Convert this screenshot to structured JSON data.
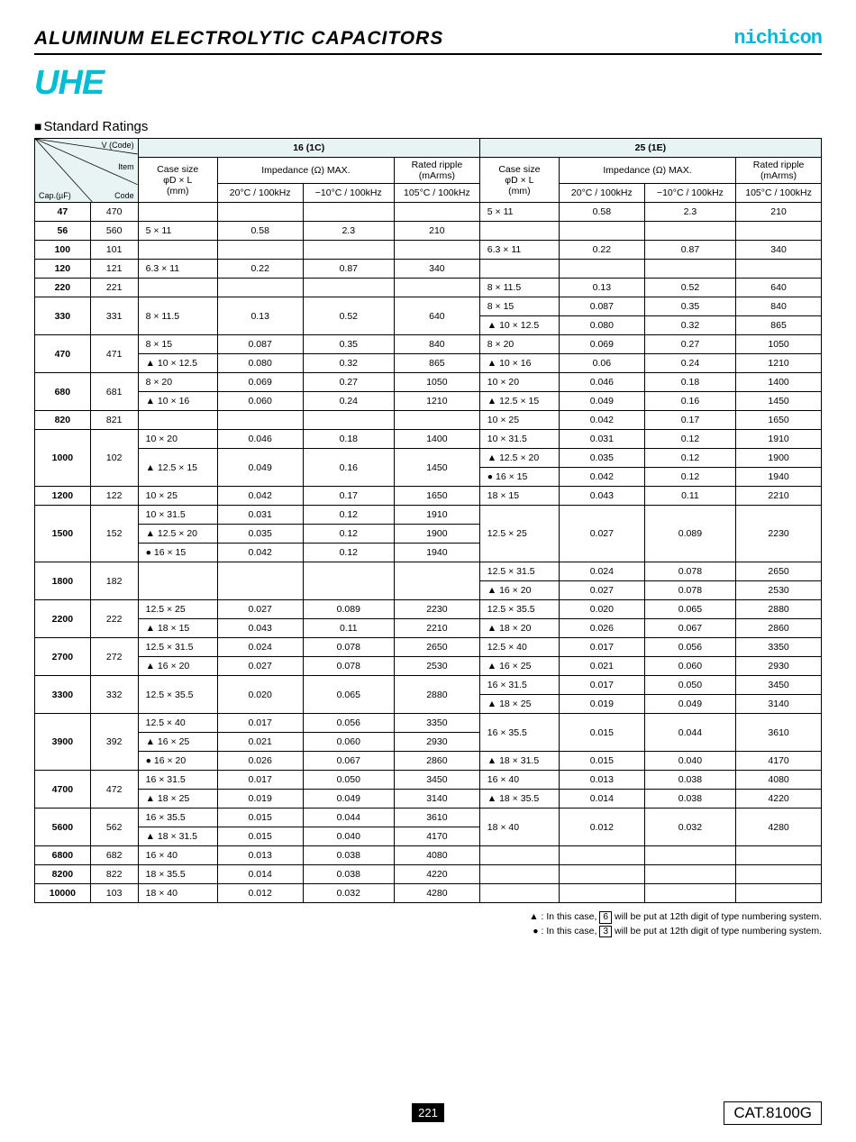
{
  "header": {
    "title": "ALUMINUM  ELECTROLYTIC  CAPACITORS",
    "brand": "nichicon",
    "series": "UHE"
  },
  "section_title": "Standard Ratings",
  "corner": {
    "vcode": "V (Code)",
    "item": "Item",
    "cap": "Cap.(µF)",
    "code": "Code"
  },
  "vheads": [
    "16 (1C)",
    "25 (1E)"
  ],
  "colheads": {
    "case": "Case size\nφD × L\n(mm)",
    "imp": "Impedance (Ω) MAX.",
    "imp20": "20°C / 100kHz",
    "impm10": "−10°C / 100kHz",
    "ripple": "Rated ripple\n(mArms)",
    "ripple105": "105°C / 100kHz"
  },
  "tri": "▲",
  "dot": "●",
  "rows": [
    {
      "cap": "47",
      "code": "470",
      "l": [
        [
          "",
          "",
          "",
          ""
        ]
      ],
      "r": [
        [
          "5 × 11",
          "0.58",
          "2.3",
          "210"
        ]
      ]
    },
    {
      "cap": "56",
      "code": "560",
      "l": [
        [
          "5 × 11",
          "0.58",
          "2.3",
          "210"
        ]
      ],
      "r": [
        [
          "",
          "",
          "",
          ""
        ]
      ]
    },
    {
      "cap": "100",
      "code": "101",
      "l": [
        [
          "",
          "",
          "",
          ""
        ]
      ],
      "r": [
        [
          "6.3 × 11",
          "0.22",
          "0.87",
          "340"
        ]
      ]
    },
    {
      "cap": "120",
      "code": "121",
      "l": [
        [
          "6.3 × 11",
          "0.22",
          "0.87",
          "340"
        ]
      ],
      "r": [
        [
          "",
          "",
          "",
          ""
        ]
      ]
    },
    {
      "cap": "220",
      "code": "221",
      "l": [
        [
          "",
          "",
          "",
          ""
        ]
      ],
      "r": [
        [
          "8 × 11.5",
          "0.13",
          "0.52",
          "640"
        ]
      ]
    },
    {
      "cap": "330",
      "code": "331",
      "l": [
        [
          "8 × 11.5",
          "0.13",
          "0.52",
          "640"
        ]
      ],
      "r": [
        [
          "8 × 15",
          "0.087",
          "0.35",
          "840"
        ],
        [
          "▲ 10 × 12.5",
          "0.080",
          "0.32",
          "865"
        ]
      ]
    },
    {
      "cap": "470",
      "code": "471",
      "l": [
        [
          "8 × 15",
          "0.087",
          "0.35",
          "840"
        ],
        [
          "▲ 10 × 12.5",
          "0.080",
          "0.32",
          "865"
        ]
      ],
      "r": [
        [
          "8 × 20",
          "0.069",
          "0.27",
          "1050"
        ],
        [
          "▲ 10 × 16",
          "0.06",
          "0.24",
          "1210"
        ]
      ]
    },
    {
      "cap": "680",
      "code": "681",
      "l": [
        [
          "8 × 20",
          "0.069",
          "0.27",
          "1050"
        ],
        [
          "▲ 10 × 16",
          "0.060",
          "0.24",
          "1210"
        ]
      ],
      "r": [
        [
          "10 × 20",
          "0.046",
          "0.18",
          "1400"
        ],
        [
          "▲ 12.5 × 15",
          "0.049",
          "0.16",
          "1450"
        ]
      ]
    },
    {
      "cap": "820",
      "code": "821",
      "l": [
        [
          "",
          "",
          "",
          ""
        ]
      ],
      "r": [
        [
          "10 × 25",
          "0.042",
          "0.17",
          "1650"
        ]
      ]
    },
    {
      "cap": "1000",
      "code": "102",
      "l": [
        [
          "10 × 20",
          "0.046",
          "0.18",
          "1400"
        ],
        [
          "▲ 12.5 × 15",
          "0.049",
          "0.16",
          "1450"
        ]
      ],
      "r": [
        [
          "10 × 31.5",
          "0.031",
          "0.12",
          "1910"
        ],
        [
          "▲ 12.5 × 20",
          "0.035",
          "0.12",
          "1900"
        ],
        [
          "● 16 × 15",
          "0.042",
          "0.12",
          "1940"
        ]
      ],
      "lspan": [
        1,
        2
      ]
    },
    {
      "cap": "1200",
      "code": "122",
      "l": [
        [
          "10 × 25",
          "0.042",
          "0.17",
          "1650"
        ]
      ],
      "r": [
        [
          "18 × 15",
          "0.043",
          "0.11",
          "2210"
        ]
      ]
    },
    {
      "cap": "1500",
      "code": "152",
      "l": [
        [
          "10 × 31.5",
          "0.031",
          "0.12",
          "1910"
        ],
        [
          "▲ 12.5 × 20",
          "0.035",
          "0.12",
          "1900"
        ],
        [
          "● 16 × 15",
          "0.042",
          "0.12",
          "1940"
        ]
      ],
      "r": [
        [
          "12.5 × 25",
          "0.027",
          "0.089",
          "2230"
        ]
      ],
      "rspan": [
        3
      ]
    },
    {
      "cap": "1800",
      "code": "182",
      "l": [
        [
          "",
          "",
          "",
          ""
        ]
      ],
      "r": [
        [
          "12.5 × 31.5",
          "0.024",
          "0.078",
          "2650"
        ],
        [
          "▲ 16 × 20",
          "0.027",
          "0.078",
          "2530"
        ]
      ],
      "lspan": [
        2
      ]
    },
    {
      "cap": "2200",
      "code": "222",
      "l": [
        [
          "12.5 × 25",
          "0.027",
          "0.089",
          "2230"
        ],
        [
          "▲ 18 × 15",
          "0.043",
          "0.11",
          "2210"
        ]
      ],
      "r": [
        [
          "12.5 × 35.5",
          "0.020",
          "0.065",
          "2880"
        ],
        [
          "▲ 18 × 20",
          "0.026",
          "0.067",
          "2860"
        ]
      ]
    },
    {
      "cap": "2700",
      "code": "272",
      "l": [
        [
          "12.5 × 31.5",
          "0.024",
          "0.078",
          "2650"
        ],
        [
          "▲ 16 × 20",
          "0.027",
          "0.078",
          "2530"
        ]
      ],
      "r": [
        [
          "12.5 × 40",
          "0.017",
          "0.056",
          "3350"
        ],
        [
          "▲ 16 × 25",
          "0.021",
          "0.060",
          "2930"
        ]
      ]
    },
    {
      "cap": "3300",
      "code": "332",
      "l": [
        [
          "12.5 × 35.5",
          "0.020",
          "0.065",
          "2880"
        ]
      ],
      "r": [
        [
          "16 × 31.5",
          "0.017",
          "0.050",
          "3450"
        ],
        [
          "▲ 18 × 25",
          "0.019",
          "0.049",
          "3140"
        ]
      ],
      "lspan": [
        2
      ]
    },
    {
      "cap": "3900",
      "code": "392",
      "l": [
        [
          "12.5 × 40",
          "0.017",
          "0.056",
          "3350"
        ],
        [
          "▲ 16 × 25",
          "0.021",
          "0.060",
          "2930"
        ],
        [
          "● 16 × 20",
          "0.026",
          "0.067",
          "2860"
        ]
      ],
      "r": [
        [
          "16 × 35.5",
          "0.015",
          "0.044",
          "3610"
        ],
        [
          "▲ 18 × 31.5",
          "0.015",
          "0.040",
          "4170"
        ]
      ],
      "rspan": [
        2,
        1
      ]
    },
    {
      "cap": "4700",
      "code": "472",
      "l": [
        [
          "16 × 31.5",
          "0.017",
          "0.050",
          "3450"
        ],
        [
          "▲ 18 × 25",
          "0.019",
          "0.049",
          "3140"
        ]
      ],
      "r": [
        [
          "16 × 40",
          "0.013",
          "0.038",
          "4080"
        ],
        [
          "▲ 18 × 35.5",
          "0.014",
          "0.038",
          "4220"
        ]
      ]
    },
    {
      "cap": "5600",
      "code": "562",
      "l": [
        [
          "16 × 35.5",
          "0.015",
          "0.044",
          "3610"
        ],
        [
          "▲ 18 × 31.5",
          "0.015",
          "0.040",
          "4170"
        ]
      ],
      "r": [
        [
          "18 × 40",
          "0.012",
          "0.032",
          "4280"
        ]
      ],
      "rspan": [
        2
      ]
    },
    {
      "cap": "6800",
      "code": "682",
      "l": [
        [
          "16 × 40",
          "0.013",
          "0.038",
          "4080"
        ]
      ],
      "r": [
        [
          "",
          "",
          "",
          ""
        ]
      ]
    },
    {
      "cap": "8200",
      "code": "822",
      "l": [
        [
          "18 × 35.5",
          "0.014",
          "0.038",
          "4220"
        ]
      ],
      "r": [
        [
          "",
          "",
          "",
          ""
        ]
      ]
    },
    {
      "cap": "10000",
      "code": "103",
      "l": [
        [
          "18 × 40",
          "0.012",
          "0.032",
          "4280"
        ]
      ],
      "r": [
        [
          "",
          "",
          "",
          ""
        ]
      ]
    }
  ],
  "footnotes": {
    "tri": "▲ : In this case, ",
    "tri_box": "6",
    "tri_end": " will be put at 12th digit of type numbering system.",
    "dot": "● : In this case, ",
    "dot_box": "3",
    "dot_end": " will be put at 12th digit of type numbering system."
  },
  "footer": {
    "page": "221",
    "cat": "CAT.8100G"
  },
  "colwidths": {
    "cap": 56,
    "code": 48,
    "case": 80,
    "imp20": 86,
    "impm10": 92,
    "ripple": 86
  }
}
